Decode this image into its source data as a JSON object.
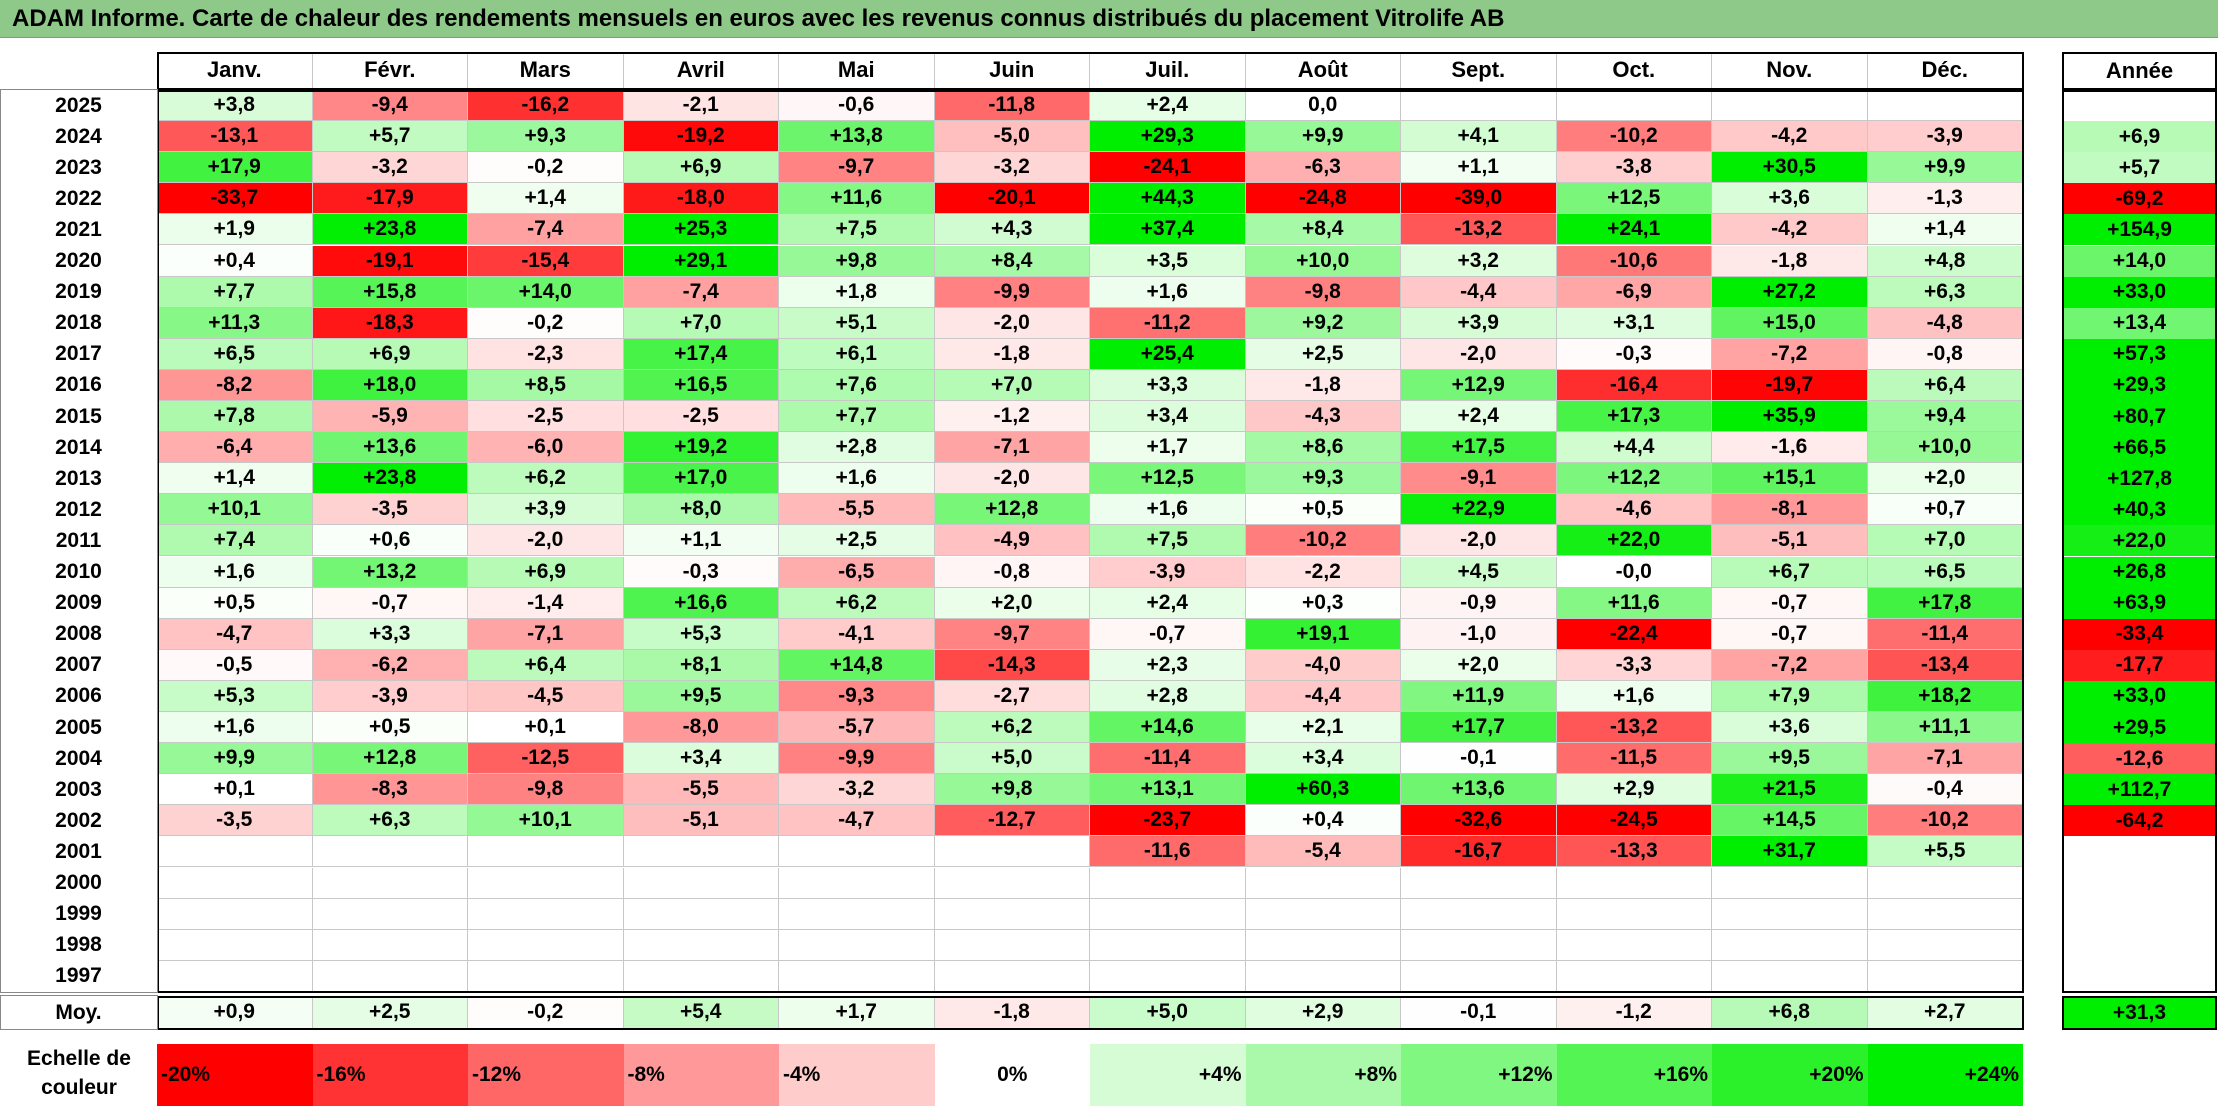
{
  "title": "ADAM Informe. Carte de chaleur des rendements mensuels en euros avec les revenus connus distribués du placement Vitrolife AB",
  "chart_data": {
    "type": "heatmap",
    "title": "ADAM Informe. Carte de chaleur des rendements mensuels en euros avec les revenus connus distribués du placement Vitrolife AB",
    "columns": [
      "Janv.",
      "Févr.",
      "Mars",
      "Avril",
      "Mai",
      "Juin",
      "Juil.",
      "Août",
      "Sept.",
      "Oct.",
      "Nov.",
      "Déc."
    ],
    "year_header": "Année",
    "rows": [
      {
        "year": "2025",
        "months": [
          "+3,8",
          "-9,4",
          "-16,2",
          "-2,1",
          "-0,6",
          "-11,8",
          "+2,4",
          "0,0",
          "",
          "",
          "",
          ""
        ],
        "annual": ""
      },
      {
        "year": "2024",
        "months": [
          "-13,1",
          "+5,7",
          "+9,3",
          "-19,2",
          "+13,8",
          "-5,0",
          "+29,3",
          "+9,9",
          "+4,1",
          "-10,2",
          "-4,2",
          "-3,9"
        ],
        "annual": "+6,9"
      },
      {
        "year": "2023",
        "months": [
          "+17,9",
          "-3,2",
          "-0,2",
          "+6,9",
          "-9,7",
          "-3,2",
          "-24,1",
          "-6,3",
          "+1,1",
          "-3,8",
          "+30,5",
          "+9,9"
        ],
        "annual": "+5,7"
      },
      {
        "year": "2022",
        "months": [
          "-33,7",
          "-17,9",
          "+1,4",
          "-18,0",
          "+11,6",
          "-20,1",
          "+44,3",
          "-24,8",
          "-39,0",
          "+12,5",
          "+3,6",
          "-1,3"
        ],
        "annual": "-69,2"
      },
      {
        "year": "2021",
        "months": [
          "+1,9",
          "+23,8",
          "-7,4",
          "+25,3",
          "+7,5",
          "+4,3",
          "+37,4",
          "+8,4",
          "-13,2",
          "+24,1",
          "-4,2",
          "+1,4"
        ],
        "annual": "+154,9"
      },
      {
        "year": "2020",
        "months": [
          "+0,4",
          "-19,1",
          "-15,4",
          "+29,1",
          "+9,8",
          "+8,4",
          "+3,5",
          "+10,0",
          "+3,2",
          "-10,6",
          "-1,8",
          "+4,8"
        ],
        "annual": "+14,0"
      },
      {
        "year": "2019",
        "months": [
          "+7,7",
          "+15,8",
          "+14,0",
          "-7,4",
          "+1,8",
          "-9,9",
          "+1,6",
          "-9,8",
          "-4,4",
          "-6,9",
          "+27,2",
          "+6,3"
        ],
        "annual": "+33,0"
      },
      {
        "year": "2018",
        "months": [
          "+11,3",
          "-18,3",
          "-0,2",
          "+7,0",
          "+5,1",
          "-2,0",
          "-11,2",
          "+9,2",
          "+3,9",
          "+3,1",
          "+15,0",
          "-4,8"
        ],
        "annual": "+13,4"
      },
      {
        "year": "2017",
        "months": [
          "+6,5",
          "+6,9",
          "-2,3",
          "+17,4",
          "+6,1",
          "-1,8",
          "+25,4",
          "+2,5",
          "-2,0",
          "-0,3",
          "-7,2",
          "-0,8"
        ],
        "annual": "+57,3"
      },
      {
        "year": "2016",
        "months": [
          "-8,2",
          "+18,0",
          "+8,5",
          "+16,5",
          "+7,6",
          "+7,0",
          "+3,3",
          "-1,8",
          "+12,9",
          "-16,4",
          "-19,7",
          "+6,4"
        ],
        "annual": "+29,3"
      },
      {
        "year": "2015",
        "months": [
          "+7,8",
          "-5,9",
          "-2,5",
          "-2,5",
          "+7,7",
          "-1,2",
          "+3,4",
          "-4,3",
          "+2,4",
          "+17,3",
          "+35,9",
          "+9,4"
        ],
        "annual": "+80,7"
      },
      {
        "year": "2014",
        "months": [
          "-6,4",
          "+13,6",
          "-6,0",
          "+19,2",
          "+2,8",
          "-7,1",
          "+1,7",
          "+8,6",
          "+17,5",
          "+4,4",
          "-1,6",
          "+10,0"
        ],
        "annual": "+66,5"
      },
      {
        "year": "2013",
        "months": [
          "+1,4",
          "+23,8",
          "+6,2",
          "+17,0",
          "+1,6",
          "-2,0",
          "+12,5",
          "+9,3",
          "-9,1",
          "+12,2",
          "+15,1",
          "+2,0"
        ],
        "annual": "+127,8"
      },
      {
        "year": "2012",
        "months": [
          "+10,1",
          "-3,5",
          "+3,9",
          "+8,0",
          "-5,5",
          "+12,8",
          "+1,6",
          "+0,5",
          "+22,9",
          "-4,6",
          "-8,1",
          "+0,7"
        ],
        "annual": "+40,3"
      },
      {
        "year": "2011",
        "months": [
          "+7,4",
          "+0,6",
          "-2,0",
          "+1,1",
          "+2,5",
          "-4,9",
          "+7,5",
          "-10,2",
          "-2,0",
          "+22,0",
          "-5,1",
          "+7,0"
        ],
        "annual": "+22,0"
      },
      {
        "year": "2010",
        "months": [
          "+1,6",
          "+13,2",
          "+6,9",
          "-0,3",
          "-6,5",
          "-0,8",
          "-3,9",
          "-2,2",
          "+4,5",
          "-0,0",
          "+6,7",
          "+6,5"
        ],
        "annual": "+26,8"
      },
      {
        "year": "2009",
        "months": [
          "+0,5",
          "-0,7",
          "-1,4",
          "+16,6",
          "+6,2",
          "+2,0",
          "+2,4",
          "+0,3",
          "-0,9",
          "+11,6",
          "-0,7",
          "+17,8"
        ],
        "annual": "+63,9"
      },
      {
        "year": "2008",
        "months": [
          "-4,7",
          "+3,3",
          "-7,1",
          "+5,3",
          "-4,1",
          "-9,7",
          "-0,7",
          "+19,1",
          "-1,0",
          "-22,4",
          "-0,7",
          "-11,4"
        ],
        "annual": "-33,4"
      },
      {
        "year": "2007",
        "months": [
          "-0,5",
          "-6,2",
          "+6,4",
          "+8,1",
          "+14,8",
          "-14,3",
          "+2,3",
          "-4,0",
          "+2,0",
          "-3,3",
          "-7,2",
          "-13,4"
        ],
        "annual": "-17,7"
      },
      {
        "year": "2006",
        "months": [
          "+5,3",
          "-3,9",
          "-4,5",
          "+9,5",
          "-9,3",
          "-2,7",
          "+2,8",
          "-4,4",
          "+11,9",
          "+1,6",
          "+7,9",
          "+18,2"
        ],
        "annual": "+33,0"
      },
      {
        "year": "2005",
        "months": [
          "+1,6",
          "+0,5",
          "+0,1",
          "-8,0",
          "-5,7",
          "+6,2",
          "+14,6",
          "+2,1",
          "+17,7",
          "-13,2",
          "+3,6",
          "+11,1"
        ],
        "annual": "+29,5"
      },
      {
        "year": "2004",
        "months": [
          "+9,9",
          "+12,8",
          "-12,5",
          "+3,4",
          "-9,9",
          "+5,0",
          "-11,4",
          "+3,4",
          "-0,1",
          "-11,5",
          "+9,5",
          "-7,1"
        ],
        "annual": "-12,6"
      },
      {
        "year": "2003",
        "months": [
          "+0,1",
          "-8,3",
          "-9,8",
          "-5,5",
          "-3,2",
          "+9,8",
          "+13,1",
          "+60,3",
          "+13,6",
          "+2,9",
          "+21,5",
          "-0,4"
        ],
        "annual": "+112,7"
      },
      {
        "year": "2002",
        "months": [
          "-3,5",
          "+6,3",
          "+10,1",
          "-5,1",
          "-4,7",
          "-12,7",
          "-23,7",
          "+0,4",
          "-32,6",
          "-24,5",
          "+14,5",
          "-10,2"
        ],
        "annual": "-64,2"
      },
      {
        "year": "2001",
        "months": [
          "",
          "",
          "",
          "",
          "",
          "",
          "-11,6",
          "-5,4",
          "-16,7",
          "-13,3",
          "+31,7",
          "+5,5"
        ],
        "annual": ""
      },
      {
        "year": "2000",
        "months": [
          "",
          "",
          "",
          "",
          "",
          "",
          "",
          "",
          "",
          "",
          "",
          ""
        ],
        "annual": ""
      },
      {
        "year": "1999",
        "months": [
          "",
          "",
          "",
          "",
          "",
          "",
          "",
          "",
          "",
          "",
          "",
          ""
        ],
        "annual": ""
      },
      {
        "year": "1998",
        "months": [
          "",
          "",
          "",
          "",
          "",
          "",
          "",
          "",
          "",
          "",
          "",
          ""
        ],
        "annual": ""
      },
      {
        "year": "1997",
        "months": [
          "",
          "",
          "",
          "",
          "",
          "",
          "",
          "",
          "",
          "",
          "",
          ""
        ],
        "annual": ""
      }
    ],
    "average": {
      "label": "Moy.",
      "months": [
        "+0,9",
        "+2,5",
        "-0,2",
        "+5,4",
        "+1,7",
        "-1,8",
        "+5,0",
        "+2,9",
        "-0,1",
        "-1,2",
        "+6,8",
        "+2,7"
      ],
      "annual": "+31,3"
    },
    "color_scale": {
      "label": "Echelle de couleur",
      "stops": [
        "-20%",
        "-16%",
        "-12%",
        "-8%",
        "-4%",
        "0%",
        "+4%",
        "+8%",
        "+12%",
        "+16%",
        "+20%",
        "+24%"
      ],
      "negative_color": "#ff0000",
      "neutral_color": "#ffffff",
      "positive_color": "#00ee00"
    }
  }
}
